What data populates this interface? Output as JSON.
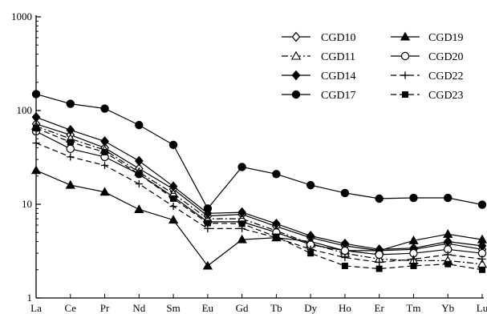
{
  "chart_data": {
    "type": "line",
    "title": "",
    "xlabel": "",
    "ylabel": "",
    "yscale": "log",
    "ylim": [
      1,
      1000
    ],
    "grid": false,
    "legend_position": "top-right",
    "categories": [
      "La",
      "Ce",
      "Pr",
      "Nd",
      "Sm",
      "Eu",
      "Gd",
      "Tb",
      "Dy",
      "Ho",
      "Er",
      "Tm",
      "Yb",
      "Lu"
    ],
    "y_ticks": [
      1,
      10,
      100,
      1000
    ],
    "y_tick_labels": [
      "1",
      "10",
      "100",
      "1000"
    ],
    "series": [
      {
        "name": "CGD10",
        "marker": "diamond-open",
        "dash": "solid",
        "values": [
          72,
          55,
          40,
          24,
          14.5,
          7.5,
          7.8,
          5.8,
          4.4,
          3.6,
          3.2,
          3.3,
          3.8,
          3.3
        ]
      },
      {
        "name": "CGD11",
        "marker": "triangle-open",
        "dash": "dashdot",
        "values": [
          68,
          50,
          38,
          22,
          13,
          7.0,
          7.0,
          5.2,
          3.8,
          3.0,
          2.6,
          2.5,
          2.5,
          2.3
        ]
      },
      {
        "name": "CGD14",
        "marker": "diamond-filled",
        "dash": "solid",
        "values": [
          85,
          62,
          47,
          29,
          15.5,
          8.0,
          8.2,
          6.2,
          4.6,
          3.8,
          3.3,
          3.4,
          4.0,
          3.6
        ]
      },
      {
        "name": "CGD17",
        "marker": "circle-filled",
        "dash": "solid",
        "values": [
          150,
          118,
          105,
          70,
          43,
          9.0,
          25,
          21,
          16,
          13.2,
          11.5,
          11.7,
          11.7,
          9.9
        ]
      },
      {
        "name": "CGD19",
        "marker": "triangle-filled",
        "dash": "solid",
        "values": [
          23,
          16,
          13.5,
          8.8,
          6.8,
          2.2,
          4.2,
          4.4,
          4.0,
          3.2,
          3.2,
          4.1,
          4.8,
          4.2
        ]
      },
      {
        "name": "CGD20",
        "marker": "circle-open",
        "dash": "solid",
        "values": [
          60,
          39,
          32,
          21,
          12,
          6.5,
          6.5,
          5.0,
          3.7,
          3.2,
          2.9,
          3.0,
          3.3,
          3.0
        ]
      },
      {
        "name": "CGD22",
        "marker": "plus",
        "dash": "dashed",
        "values": [
          45,
          32,
          26,
          16.5,
          9.5,
          5.5,
          5.5,
          4.4,
          3.3,
          2.7,
          2.4,
          2.6,
          2.9,
          2.6
        ]
      },
      {
        "name": "CGD23",
        "marker": "square-filled",
        "dash": "dashed",
        "values": [
          65,
          46,
          36,
          21,
          11.5,
          6.3,
          6.2,
          4.5,
          3.0,
          2.2,
          2.05,
          2.2,
          2.3,
          2.0
        ]
      }
    ]
  }
}
